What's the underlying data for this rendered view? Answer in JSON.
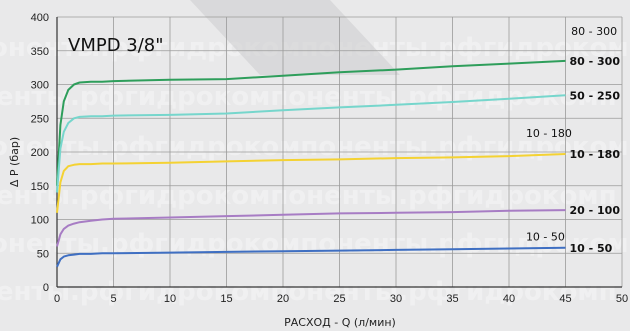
{
  "chart_data": {
    "type": "line",
    "title": "VMPD 3/8\"",
    "xlabel": "РАСХОД - Q (л/мин)",
    "ylabel": "Δ P (бар)",
    "xlim": [
      0,
      50
    ],
    "ylim": [
      0,
      400
    ],
    "xticks": [
      0,
      5,
      10,
      15,
      20,
      25,
      30,
      35,
      40,
      45,
      50
    ],
    "yticks": [
      0,
      50,
      100,
      150,
      200,
      250,
      300,
      350,
      400
    ],
    "grid": true,
    "watermark": "оненты.рфгидрокомпоненты.рфгидрокомп",
    "series": [
      {
        "name": "80 - 300",
        "color": "#2e9e5b",
        "x": [
          0,
          0.3,
          0.6,
          1,
          1.5,
          2,
          3,
          4,
          5,
          10,
          15,
          20,
          25,
          30,
          35,
          40,
          45
        ],
        "y": [
          150,
          240,
          275,
          292,
          300,
          303,
          304,
          304,
          305,
          307,
          308,
          313,
          318,
          322,
          327,
          331,
          335
        ]
      },
      {
        "name": "50 - 250",
        "color": "#76d6cc",
        "x": [
          0,
          0.3,
          0.6,
          1,
          1.5,
          2,
          3,
          4,
          5,
          10,
          15,
          20,
          25,
          30,
          35,
          40,
          45
        ],
        "y": [
          140,
          205,
          230,
          243,
          250,
          252,
          253,
          253,
          254,
          255,
          257,
          262,
          266,
          270,
          274,
          279,
          284
        ]
      },
      {
        "name": "10 - 180",
        "color": "#f4d233",
        "x": [
          0,
          0.3,
          0.6,
          1,
          1.5,
          2,
          3,
          4,
          5,
          10,
          15,
          20,
          25,
          30,
          35,
          40,
          45
        ],
        "y": [
          110,
          155,
          172,
          179,
          181,
          182,
          182,
          183,
          183,
          184,
          186,
          188,
          189,
          191,
          192,
          194,
          197
        ]
      },
      {
        "name": "20 - 100",
        "color": "#a77cc4",
        "x": [
          0,
          0.3,
          0.6,
          1,
          1.5,
          2,
          3,
          4,
          5,
          10,
          15,
          20,
          25,
          30,
          35,
          40,
          45
        ],
        "y": [
          60,
          78,
          86,
          91,
          94,
          96,
          98,
          100,
          101,
          103,
          105,
          107,
          109,
          110,
          111,
          113,
          114
        ]
      },
      {
        "name": "10 - 50",
        "color": "#3f6fc2",
        "x": [
          0,
          0.3,
          0.6,
          1,
          1.5,
          2,
          3,
          4,
          5,
          10,
          15,
          20,
          25,
          30,
          35,
          40,
          45
        ],
        "y": [
          30,
          41,
          45,
          47,
          48,
          49,
          49,
          50,
          50,
          51,
          52,
          53,
          54,
          55,
          56,
          57,
          58
        ]
      }
    ],
    "annotations": [
      {
        "text": "80 - 300",
        "x": 45.5,
        "y": 373
      },
      {
        "text": "10 - 180",
        "x": 41.5,
        "y": 222
      },
      {
        "text": "10 - 50",
        "x": 41.5,
        "y": 69
      }
    ]
  }
}
